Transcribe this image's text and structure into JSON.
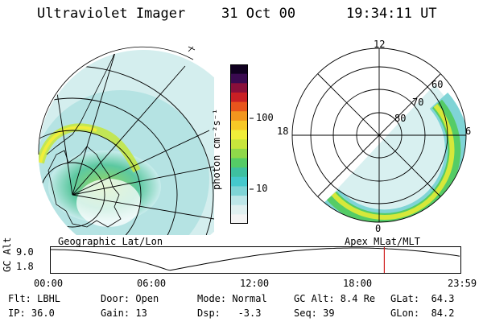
{
  "header": {
    "instrument": "Ultraviolet Imager",
    "date": "31 Oct 00",
    "time": "19:34:11 UT"
  },
  "colorbar": {
    "unit_label": "photon cm⁻²s⁻¹",
    "ticks": [
      "100",
      "10"
    ],
    "scale": "log",
    "colors": [
      "#f4f4f4",
      "#e0f0f0",
      "#bde6e8",
      "#7fd4d6",
      "#45c8cc",
      "#3ec0a0",
      "#55cc66",
      "#8fd84a",
      "#c8e63c",
      "#f0ee3a",
      "#f7c826",
      "#f2961e",
      "#e8541c",
      "#c91f24",
      "#8a0f3a",
      "#3a0a50",
      "#100020"
    ]
  },
  "panels": {
    "left_caption": "Geographic Lat/Lon",
    "right_caption": "Apex MLat/MLT",
    "polar_labels": {
      "mlt_top": "12",
      "mlt_left": "18",
      "mlt_right": "6",
      "mlt_bottom": "0",
      "lat_60": "60",
      "lat_70": "70",
      "lat_80": "80"
    }
  },
  "altitude_plot": {
    "ylabel": "GC Alt",
    "y_ticks": [
      "9.0",
      "1.8"
    ],
    "x_ticks": [
      "00:00",
      "06:00",
      "12:00",
      "18:00",
      "23:59"
    ],
    "current_time_marker": "19:34",
    "marker_color": "#d02020"
  },
  "status": {
    "row1": {
      "flt": "Flt: LBHL",
      "door": "Door: Open",
      "mode": "Mode: Normal",
      "gc_alt": "GC Alt: 8.4 Re",
      "glat": "GLat:  64.3"
    },
    "row2": {
      "ip": "IP: 36.0",
      "gain": "Gain: 13",
      "dsp": "Dsp:   -3.3",
      "seq": "Seq: 39",
      "glon": "GLon:  84.2"
    }
  }
}
